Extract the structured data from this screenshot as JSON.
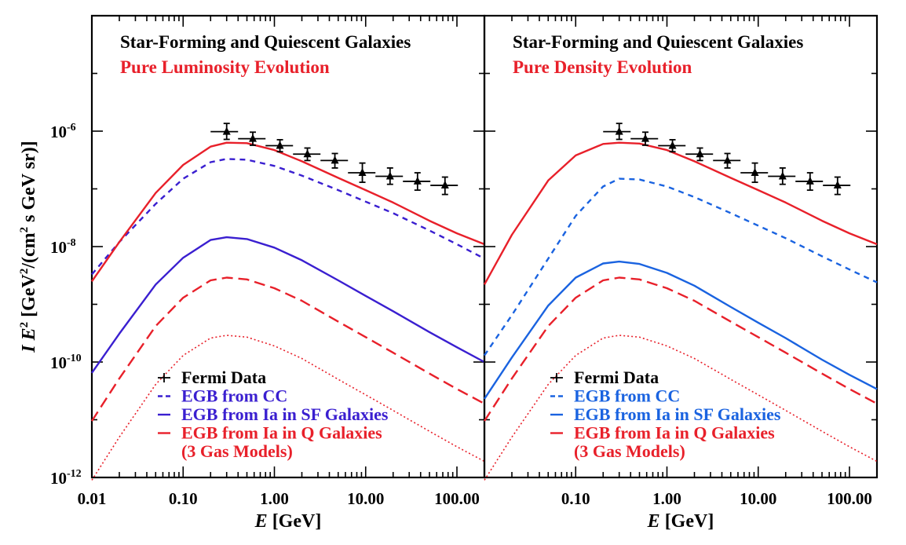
{
  "chart_data": [
    {
      "type": "line",
      "title": "Star-Forming and Quiescent Galaxies",
      "subtitle": "Pure Luminosity Evolution",
      "title_color": "#000000",
      "subtitle_color": "#e8202a",
      "xlabel_var": "E",
      "xlabel_unit": "[GeV]",
      "ylabel_var": "I E",
      "ylabel_sup": "2",
      "ylabel_unit_a": "[GeV",
      "ylabel_unit_b": "2",
      "ylabel_unit_c": "/(cm",
      "ylabel_unit_d": "2",
      "ylabel_unit_e": " s GeV sr)]",
      "x_scale": "log",
      "y_scale": "log",
      "xlim": [
        0.01,
        200
      ],
      "ylim": [
        1e-12,
        0.0001
      ],
      "x_ticks": [
        {
          "value": 0.01,
          "label": "0.01"
        },
        {
          "value": 0.1,
          "label": "0.10"
        },
        {
          "value": 1,
          "label": "1.00"
        },
        {
          "value": 10,
          "label": "10.00"
        },
        {
          "value": 100,
          "label": "100.00"
        }
      ],
      "y_ticks": [
        {
          "value": 1e-06,
          "mant": "10",
          "exp": "-6"
        },
        {
          "value": 1e-08,
          "mant": "10",
          "exp": "-8"
        },
        {
          "value": 1e-10,
          "mant": "10",
          "exp": "-10"
        },
        {
          "value": 1e-12,
          "mant": "10",
          "exp": "-12"
        }
      ],
      "fermi_data": [
        {
          "x": 0.3,
          "y": 9.8e-07,
          "xlo": 0.2,
          "xhi": 0.4,
          "ylo": 7.2e-07,
          "yhi": 1.36e-06
        },
        {
          "x": 0.58,
          "y": 7.4e-07,
          "xlo": 0.4,
          "xhi": 0.8,
          "ylo": 5.7e-07,
          "yhi": 9.6e-07
        },
        {
          "x": 1.15,
          "y": 5.6e-07,
          "xlo": 0.8,
          "xhi": 1.6,
          "ylo": 4.4e-07,
          "yhi": 7.1e-07
        },
        {
          "x": 2.3,
          "y": 4e-07,
          "xlo": 1.6,
          "xhi": 3.2,
          "ylo": 3.1e-07,
          "yhi": 5.1e-07
        },
        {
          "x": 4.6,
          "y": 3.1e-07,
          "xlo": 3.2,
          "xhi": 6.4,
          "ylo": 2.3e-07,
          "yhi": 4.1e-07
        },
        {
          "x": 9.2,
          "y": 1.9e-07,
          "xlo": 6.4,
          "xhi": 12.8,
          "ylo": 1.3e-07,
          "yhi": 2.8e-07
        },
        {
          "x": 18.5,
          "y": 1.65e-07,
          "xlo": 12.8,
          "xhi": 25.6,
          "ylo": 1.2e-07,
          "yhi": 2.3e-07
        },
        {
          "x": 37,
          "y": 1.35e-07,
          "xlo": 25.6,
          "xhi": 51.2,
          "ylo": 9.5e-08,
          "yhi": 1.9e-07
        },
        {
          "x": 74,
          "y": 1.15e-07,
          "xlo": 51.2,
          "xhi": 102.4,
          "ylo": 8e-08,
          "yhi": 1.6e-07
        }
      ],
      "series": [
        {
          "name": "EGB from CC",
          "color": "#3a1fd0",
          "dash": "short",
          "width": 2.4,
          "x": [
            0.01,
            0.02,
            0.05,
            0.1,
            0.2,
            0.3,
            0.5,
            1,
            2,
            5,
            10,
            20,
            50,
            100,
            200
          ],
          "y": [
            3.3e-09,
            1.2e-08,
            5.5e-08,
            1.5e-07,
            2.9e-07,
            3.3e-07,
            3.2e-07,
            2.5e-07,
            1.7e-07,
            9.5e-08,
            6e-08,
            3.8e-08,
            1.9e-08,
            1.1e-08,
            6.2e-09
          ]
        },
        {
          "name": "EGB from Ia in SF Galaxies",
          "color": "#3a1fd0",
          "dash": "solid",
          "width": 2.4,
          "x": [
            0.01,
            0.02,
            0.05,
            0.1,
            0.2,
            0.3,
            0.5,
            1,
            2,
            5,
            10,
            20,
            50,
            100,
            200
          ],
          "y": [
            6.5e-11,
            3.1e-10,
            2.2e-09,
            6.4e-09,
            1.3e-08,
            1.45e-08,
            1.35e-08,
            9.6e-09,
            5.8e-09,
            2.6e-09,
            1.4e-09,
            7.6e-10,
            3.3e-10,
            1.8e-10,
            1e-10
          ]
        },
        {
          "name": "EGB from Ia in Q Galaxies (3 Gas Models)",
          "color": "#e8202a",
          "dash": "long",
          "width": 2.4,
          "x": [
            0.01,
            0.02,
            0.05,
            0.1,
            0.2,
            0.3,
            0.5,
            1,
            2,
            5,
            10,
            20,
            50,
            100,
            200
          ],
          "y": [
            9.5e-12,
            5.2e-11,
            4.2e-10,
            1.3e-09,
            2.6e-09,
            2.9e-09,
            2.7e-09,
            1.9e-09,
            1.15e-09,
            5e-10,
            2.7e-10,
            1.45e-10,
            6.3e-11,
            3.4e-11,
            1.9e-11
          ]
        },
        {
          "name": "",
          "color": "#e8202a",
          "dash": "dot",
          "width": 1.6,
          "x": [
            0.01,
            0.02,
            0.05,
            0.1,
            0.2,
            0.3,
            0.5,
            1,
            2,
            5,
            10,
            20,
            50,
            100,
            200
          ],
          "y": [
            9e-13,
            5e-12,
            4.1e-11,
            1.3e-10,
            2.6e-10,
            2.9e-10,
            2.7e-10,
            1.9e-10,
            1.15e-10,
            5e-11,
            2.7e-11,
            1.45e-11,
            6.3e-12,
            3.4e-12,
            1.9e-12
          ]
        },
        {
          "name": "",
          "color": "#e8202a",
          "dash": "solid",
          "width": 2.4,
          "x": [
            0.01,
            0.02,
            0.05,
            0.1,
            0.2,
            0.3,
            0.5,
            1,
            2,
            5,
            10,
            20,
            50,
            100,
            200
          ],
          "y": [
            2.5e-09,
            1.2e-08,
            8.5e-08,
            2.6e-07,
            5.4e-07,
            6.3e-07,
            6.2e-07,
            4.7e-07,
            3e-07,
            1.55e-07,
            9.5e-08,
            5.8e-08,
            2.8e-08,
            1.7e-08,
            1.1e-08
          ]
        }
      ],
      "legend": {
        "placement": "bottom-left",
        "items": [
          {
            "label": "Fermi Data",
            "color": "#000000",
            "symbol": "cross"
          },
          {
            "label": "EGB from CC",
            "color": "#3a1fd0",
            "symbol": "short"
          },
          {
            "label": "EGB from Ia in SF Galaxies",
            "color": "#3a1fd0",
            "symbol": "solid"
          },
          {
            "label": "EGB from Ia in Q Galaxies",
            "color": "#e8202a",
            "symbol": "long"
          },
          {
            "label": "(3 Gas Models)",
            "color": "#e8202a",
            "symbol": "none"
          }
        ]
      }
    },
    {
      "type": "line",
      "title": "Star-Forming and Quiescent Galaxies",
      "subtitle": "Pure Density Evolution",
      "title_color": "#000000",
      "subtitle_color": "#e8202a",
      "xlabel_var": "E",
      "xlabel_unit": "[GeV]",
      "x_scale": "log",
      "y_scale": "log",
      "xlim": [
        0.01,
        200
      ],
      "ylim": [
        1e-12,
        0.0001
      ],
      "x_ticks": [
        {
          "value": 0.1,
          "label": "0.10"
        },
        {
          "value": 1,
          "label": "1.00"
        },
        {
          "value": 10,
          "label": "10.00"
        },
        {
          "value": 100,
          "label": "100.00"
        }
      ],
      "fermi_data": [
        {
          "x": 0.3,
          "y": 9.8e-07,
          "xlo": 0.2,
          "xhi": 0.4,
          "ylo": 7.2e-07,
          "yhi": 1.36e-06
        },
        {
          "x": 0.58,
          "y": 7.4e-07,
          "xlo": 0.4,
          "xhi": 0.8,
          "ylo": 5.7e-07,
          "yhi": 9.6e-07
        },
        {
          "x": 1.15,
          "y": 5.6e-07,
          "xlo": 0.8,
          "xhi": 1.6,
          "ylo": 4.4e-07,
          "yhi": 7.1e-07
        },
        {
          "x": 2.3,
          "y": 4e-07,
          "xlo": 1.6,
          "xhi": 3.2,
          "ylo": 3.1e-07,
          "yhi": 5.1e-07
        },
        {
          "x": 4.6,
          "y": 3.1e-07,
          "xlo": 3.2,
          "xhi": 6.4,
          "ylo": 2.3e-07,
          "yhi": 4.1e-07
        },
        {
          "x": 9.2,
          "y": 1.9e-07,
          "xlo": 6.4,
          "xhi": 12.8,
          "ylo": 1.3e-07,
          "yhi": 2.8e-07
        },
        {
          "x": 18.5,
          "y": 1.65e-07,
          "xlo": 12.8,
          "xhi": 25.6,
          "ylo": 1.2e-07,
          "yhi": 2.3e-07
        },
        {
          "x": 37,
          "y": 1.35e-07,
          "xlo": 25.6,
          "xhi": 51.2,
          "ylo": 9.5e-08,
          "yhi": 1.9e-07
        },
        {
          "x": 74,
          "y": 1.15e-07,
          "xlo": 51.2,
          "xhi": 102.4,
          "ylo": 8e-08,
          "yhi": 1.6e-07
        }
      ],
      "series": [
        {
          "name": "EGB from CC",
          "color": "#1a63e0",
          "dash": "short",
          "width": 2.4,
          "x": [
            0.01,
            0.02,
            0.05,
            0.1,
            0.2,
            0.3,
            0.5,
            1,
            2,
            5,
            10,
            20,
            50,
            100,
            200
          ],
          "y": [
            1.3e-10,
            6.5e-10,
            6.2e-09,
            3.4e-08,
            1.1e-07,
            1.5e-07,
            1.45e-07,
            1.1e-07,
            7.2e-08,
            3.8e-08,
            2.3e-08,
            1.4e-08,
            6.8e-09,
            4e-09,
            2.4e-09
          ]
        },
        {
          "name": "EGB from Ia in SF Galaxies",
          "color": "#1a63e0",
          "dash": "solid",
          "width": 2.4,
          "x": [
            0.01,
            0.02,
            0.05,
            0.1,
            0.2,
            0.3,
            0.5,
            1,
            2,
            5,
            10,
            20,
            50,
            100,
            200
          ],
          "y": [
            2.3e-11,
            1.2e-10,
            9.5e-10,
            2.9e-09,
            5.1e-09,
            5.5e-09,
            5e-09,
            3.5e-09,
            2.1e-09,
            9e-10,
            4.8e-10,
            2.6e-10,
            1.1e-10,
            6e-11,
            3.4e-11
          ]
        },
        {
          "name": "EGB from Ia in Q Galaxies (3 Gas Models)",
          "color": "#e8202a",
          "dash": "long",
          "width": 2.4,
          "x": [
            0.01,
            0.02,
            0.05,
            0.1,
            0.2,
            0.3,
            0.5,
            1,
            2,
            5,
            10,
            20,
            50,
            100,
            200
          ],
          "y": [
            9.5e-12,
            5.2e-11,
            4.2e-10,
            1.3e-09,
            2.6e-09,
            2.9e-09,
            2.7e-09,
            1.9e-09,
            1.15e-09,
            5e-10,
            2.7e-10,
            1.45e-10,
            6.3e-11,
            3.4e-11,
            1.9e-11
          ]
        },
        {
          "name": "",
          "color": "#e8202a",
          "dash": "dot",
          "width": 1.6,
          "x": [
            0.01,
            0.02,
            0.05,
            0.1,
            0.2,
            0.3,
            0.5,
            1,
            2,
            5,
            10,
            20,
            50,
            100,
            200
          ],
          "y": [
            9e-13,
            5e-12,
            4.1e-11,
            1.3e-10,
            2.6e-10,
            2.9e-10,
            2.7e-10,
            1.9e-10,
            1.15e-10,
            5e-11,
            2.7e-11,
            1.45e-11,
            6.3e-12,
            3.4e-12,
            1.9e-12
          ]
        },
        {
          "name": "",
          "color": "#e8202a",
          "dash": "solid",
          "width": 2.4,
          "x": [
            0.01,
            0.02,
            0.05,
            0.1,
            0.2,
            0.3,
            0.5,
            1,
            2,
            5,
            10,
            20,
            50,
            100,
            200
          ],
          "y": [
            2.2e-09,
            1.6e-08,
            1.4e-07,
            3.8e-07,
            6e-07,
            6.3e-07,
            6.1e-07,
            4.7e-07,
            3e-07,
            1.55e-07,
            9.5e-08,
            5.8e-08,
            2.8e-08,
            1.7e-08,
            1.1e-08
          ]
        }
      ],
      "legend": {
        "placement": "bottom-left",
        "items": [
          {
            "label": "Fermi Data",
            "color": "#000000",
            "symbol": "cross"
          },
          {
            "label": "EGB from CC",
            "color": "#1a63e0",
            "symbol": "short"
          },
          {
            "label": "EGB from Ia in SF Galaxies",
            "color": "#1a63e0",
            "symbol": "solid"
          },
          {
            "label": "EGB from Ia in Q Galaxies",
            "color": "#e8202a",
            "symbol": "long"
          },
          {
            "label": "(3 Gas Models)",
            "color": "#e8202a",
            "symbol": "none"
          }
        ]
      }
    }
  ]
}
